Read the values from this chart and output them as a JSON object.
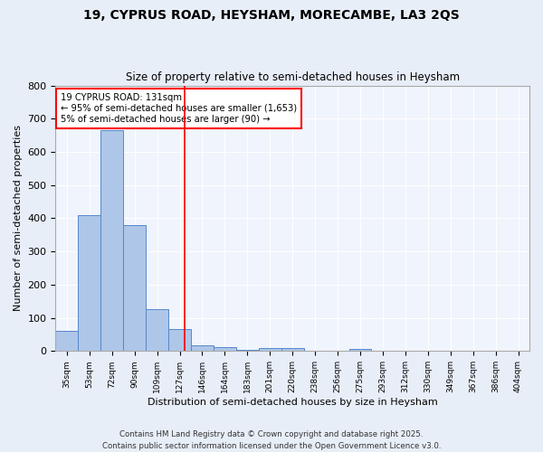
{
  "title1": "19, CYPRUS ROAD, HEYSHAM, MORECAMBE, LA3 2QS",
  "title2": "Size of property relative to semi-detached houses in Heysham",
  "xlabel": "Distribution of semi-detached houses by size in Heysham",
  "ylabel": "Number of semi-detached properties",
  "bar_color": "#aec6e8",
  "bar_edge_color": "#5588cc",
  "bin_labels": [
    "35sqm",
    "53sqm",
    "72sqm",
    "90sqm",
    "109sqm",
    "127sqm",
    "146sqm",
    "164sqm",
    "183sqm",
    "201sqm",
    "220sqm",
    "238sqm",
    "256sqm",
    "275sqm",
    "293sqm",
    "312sqm",
    "330sqm",
    "349sqm",
    "367sqm",
    "386sqm",
    "404sqm"
  ],
  "bar_values": [
    60,
    410,
    665,
    380,
    125,
    65,
    18,
    13,
    5,
    10,
    10,
    0,
    0,
    7,
    0,
    0,
    0,
    0,
    0,
    0,
    0
  ],
  "bin_edges_numeric": [
    35,
    53,
    72,
    90,
    109,
    127,
    146,
    164,
    183,
    201,
    220,
    238,
    256,
    275,
    293,
    312,
    330,
    349,
    367,
    386,
    404
  ],
  "property_sqm": 131,
  "property_bin_lo": 127,
  "property_bin_hi": 146,
  "property_bin_idx": 5,
  "annotation_line1": "19 CYPRUS ROAD: 131sqm",
  "annotation_line2": "← 95% of semi-detached houses are smaller (1,653)",
  "annotation_line3": "5% of semi-detached houses are larger (90) →",
  "vline_color": "red",
  "box_edge_color": "red",
  "ylim": [
    0,
    800
  ],
  "yticks": [
    0,
    100,
    200,
    300,
    400,
    500,
    600,
    700,
    800
  ],
  "footer": "Contains HM Land Registry data © Crown copyright and database right 2025.\nContains public sector information licensed under the Open Government Licence v3.0.",
  "bg_color": "#e8eef8",
  "plot_bg_color": "#f0f4fc"
}
